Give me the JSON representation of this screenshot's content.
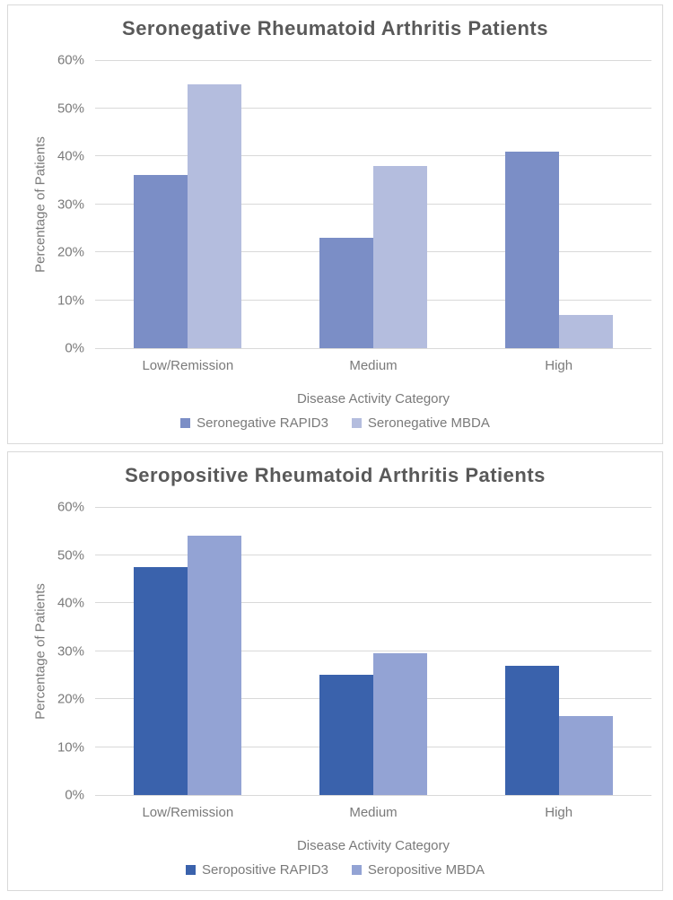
{
  "chart_data": [
    {
      "type": "bar",
      "title": "Seronegative Rheumatoid Arthritis Patients",
      "xlabel": "Disease Activity Category",
      "ylabel": "Percentage of Patients",
      "categories": [
        "Low/Remission",
        "Medium",
        "High"
      ],
      "series": [
        {
          "name": "Seronegative RAPID3",
          "color": "#7b8ec6",
          "values": [
            36,
            23,
            41
          ]
        },
        {
          "name": "Seronegative MBDA",
          "color": "#b4bdde",
          "values": [
            55,
            38,
            7
          ]
        }
      ],
      "ylim": [
        0,
        60
      ],
      "ytick_step": 10,
      "ytick_format": "percent",
      "grid": true,
      "legend_position": "bottom"
    },
    {
      "type": "bar",
      "title": "Seropositive Rheumatoid Arthritis Patients",
      "xlabel": "Disease Activity Category",
      "ylabel": "Percentage of Patients",
      "categories": [
        "Low/Remission",
        "Medium",
        "High"
      ],
      "series": [
        {
          "name": "Seropositive RAPID3",
          "color": "#3a62ac",
          "values": [
            47.5,
            25,
            27
          ]
        },
        {
          "name": "Seropositive MBDA",
          "color": "#93a3d4",
          "values": [
            54,
            29.5,
            16.5
          ]
        }
      ],
      "ylim": [
        0,
        60
      ],
      "ytick_step": 10,
      "ytick_format": "percent",
      "grid": true,
      "legend_position": "bottom"
    }
  ],
  "styles": {
    "grid_color": "#d9d9d9",
    "panel_border_color": "#d9d9d9",
    "title_color": "#595959",
    "axis_text_color": "#7a7a7a"
  }
}
